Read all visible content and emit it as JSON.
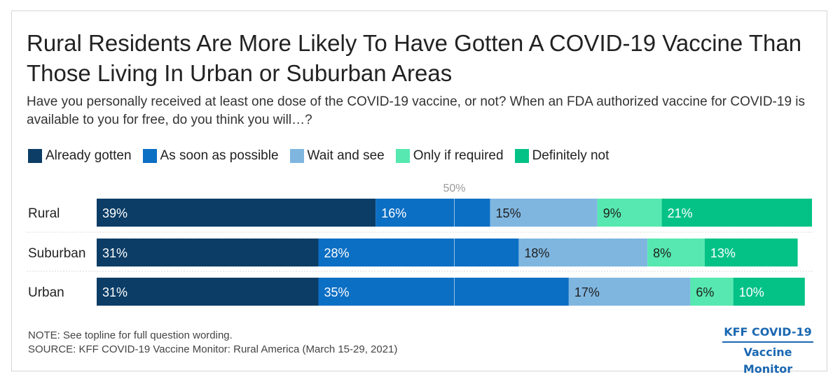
{
  "header": {
    "title": "Rural Residents Are More Likely To Have Gotten A COVID-19 Vaccine Than Those Living In Urban or Suburban Areas",
    "subtitle": "Have you personally received at least one dose of the COVID-19 vaccine, or not? When an FDA authorized vaccine for COVID-19 is available to you for free, do you think you will…?"
  },
  "chart_data": {
    "type": "bar",
    "orientation": "horizontal",
    "stacked": true,
    "categories": [
      "Rural",
      "Suburban",
      "Urban"
    ],
    "series": [
      {
        "name": "Already gotten",
        "color": "#0c3d66",
        "values": [
          39,
          31,
          31
        ]
      },
      {
        "name": "As soon as possible",
        "color": "#0b6fc4",
        "values": [
          16,
          28,
          35
        ]
      },
      {
        "name": "Wait and see",
        "color": "#7fb6e0",
        "values": [
          15,
          18,
          17
        ]
      },
      {
        "name": "Only if required",
        "color": "#56e8b0",
        "values": [
          9,
          8,
          6
        ]
      },
      {
        "name": "Definitely not",
        "color": "#04c286",
        "values": [
          21,
          13,
          10
        ]
      }
    ],
    "reference_line": {
      "value": 50,
      "label": "50%"
    },
    "value_suffix": "%",
    "xlim": [
      0,
      100
    ],
    "legend_position": "top-left",
    "grid": false
  },
  "footer": {
    "note": "NOTE: See topline for full question wording.",
    "source": "SOURCE: KFF COVID-19 Vaccine Monitor: Rural America (March 15-29, 2021)"
  },
  "logo": {
    "line1": "KFF COVID-19",
    "line2": "Vaccine Monitor"
  }
}
